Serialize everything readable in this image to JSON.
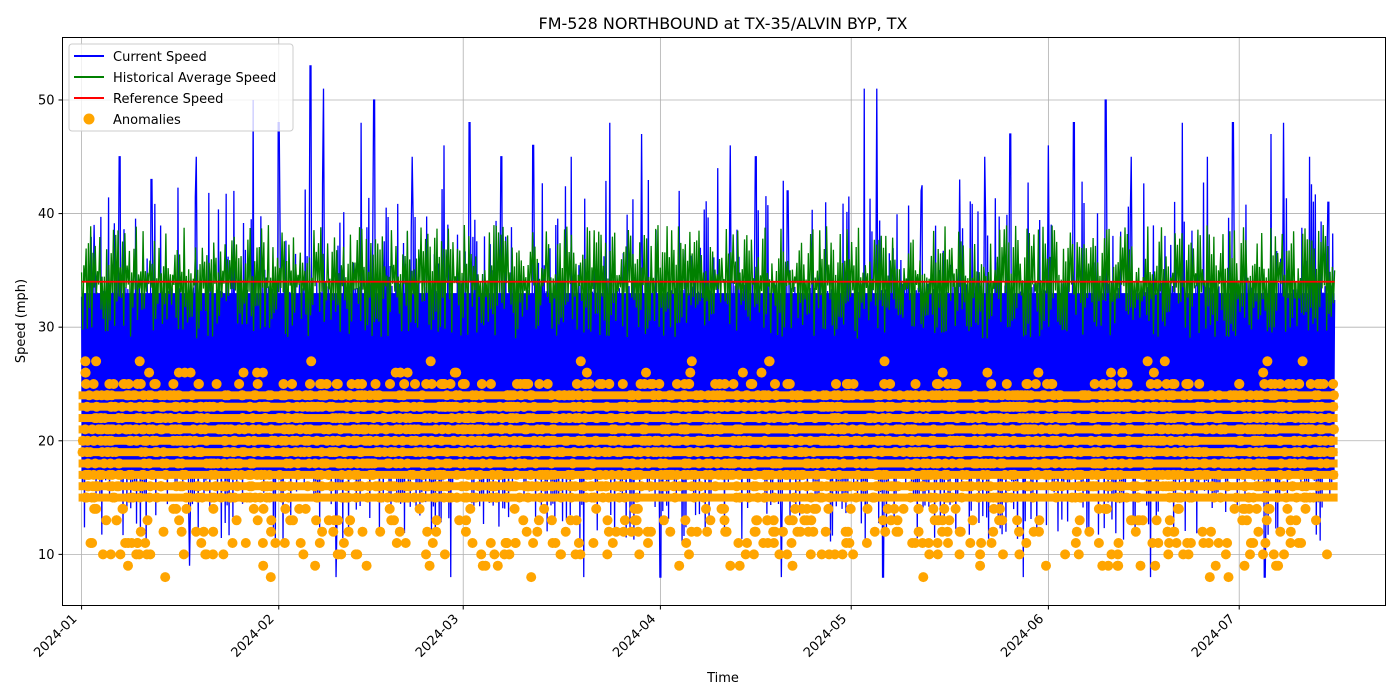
{
  "chart_data": {
    "type": "line",
    "title": "FM-528 NORTHBOUND at TX-35/ALVIN BYP, TX",
    "xlabel": "Time",
    "ylabel": "Speed (mph)",
    "x_range": [
      "2023-12-29",
      "2024-07-24"
    ],
    "ylim": [
      5.5,
      55.5
    ],
    "grid": true,
    "legend_position": "top-left",
    "x_ticks": [
      "2024-01",
      "2024-02",
      "2024-03",
      "2024-04",
      "2024-05",
      "2024-06",
      "2024-07"
    ],
    "y_ticks": [
      10,
      20,
      30,
      40,
      50
    ],
    "series": [
      {
        "name": "Current Speed",
        "color": "#0000ff",
        "kind": "line",
        "x_start": "2024-01-01",
        "x_end": "2024-07-16",
        "typical_range": [
          11,
          34
        ],
        "peak_values": [
          {
            "x": "2024-01-03",
            "y": 39
          },
          {
            "x": "2024-01-07",
            "y": 45
          },
          {
            "x": "2024-01-12",
            "y": 43
          },
          {
            "x": "2024-01-19",
            "y": 45
          },
          {
            "x": "2024-01-25",
            "y": 42
          },
          {
            "x": "2024-01-28",
            "y": 50
          },
          {
            "x": "2024-02-01",
            "y": 48
          },
          {
            "x": "2024-02-06",
            "y": 53
          },
          {
            "x": "2024-02-08",
            "y": 51
          },
          {
            "x": "2024-02-14",
            "y": 48
          },
          {
            "x": "2024-02-16",
            "y": 50
          },
          {
            "x": "2024-02-22",
            "y": 45
          },
          {
            "x": "2024-02-27",
            "y": 46
          },
          {
            "x": "2024-03-02",
            "y": 48
          },
          {
            "x": "2024-03-07",
            "y": 45
          },
          {
            "x": "2024-03-12",
            "y": 46
          },
          {
            "x": "2024-03-18",
            "y": 45
          },
          {
            "x": "2024-03-24",
            "y": 48
          },
          {
            "x": "2024-03-29",
            "y": 47
          },
          {
            "x": "2024-04-04",
            "y": 42
          },
          {
            "x": "2024-04-10",
            "y": 44
          },
          {
            "x": "2024-04-12",
            "y": 46
          },
          {
            "x": "2024-04-16",
            "y": 45
          },
          {
            "x": "2024-04-21",
            "y": 42
          },
          {
            "x": "2024-04-27",
            "y": 41
          },
          {
            "x": "2024-05-03",
            "y": 51
          },
          {
            "x": "2024-05-05",
            "y": 51
          },
          {
            "x": "2024-05-12",
            "y": 42
          },
          {
            "x": "2024-05-18",
            "y": 43
          },
          {
            "x": "2024-05-22",
            "y": 45
          },
          {
            "x": "2024-05-26",
            "y": 47
          },
          {
            "x": "2024-06-01",
            "y": 46
          },
          {
            "x": "2024-06-05",
            "y": 48
          },
          {
            "x": "2024-06-10",
            "y": 50
          },
          {
            "x": "2024-06-14",
            "y": 45
          },
          {
            "x": "2024-06-22",
            "y": 48
          },
          {
            "x": "2024-06-26",
            "y": 45
          },
          {
            "x": "2024-06-30",
            "y": 48
          },
          {
            "x": "2024-07-06",
            "y": 47
          },
          {
            "x": "2024-07-08",
            "y": 48
          },
          {
            "x": "2024-07-12",
            "y": 45
          },
          {
            "x": "2024-07-15",
            "y": 41
          }
        ],
        "dip_values": [
          {
            "x": "2024-01-18",
            "y": 9
          },
          {
            "x": "2024-02-10",
            "y": 8
          },
          {
            "x": "2024-02-28",
            "y": 8
          },
          {
            "x": "2024-03-20",
            "y": 8
          },
          {
            "x": "2024-04-01",
            "y": 8
          },
          {
            "x": "2024-04-20",
            "y": 8
          },
          {
            "x": "2024-05-06",
            "y": 8
          },
          {
            "x": "2024-05-28",
            "y": 8
          },
          {
            "x": "2024-06-17",
            "y": 8
          },
          {
            "x": "2024-07-05",
            "y": 8
          }
        ]
      },
      {
        "name": "Historical Average Speed",
        "color": "#008000",
        "kind": "line",
        "x_start": "2024-01-01",
        "x_end": "2024-07-16",
        "typical_range": [
          29,
          39
        ]
      },
      {
        "name": "Reference Speed",
        "color": "#ff0000",
        "kind": "line",
        "x_start": "2024-01-01",
        "x_end": "2024-07-16",
        "value": 34
      },
      {
        "name": "Anomalies",
        "color": "#ffa500",
        "kind": "scatter",
        "x_start": "2024-01-01",
        "x_end": "2024-07-16",
        "typical_range": [
          8,
          27
        ],
        "dense_band": [
          15,
          25
        ]
      }
    ]
  }
}
